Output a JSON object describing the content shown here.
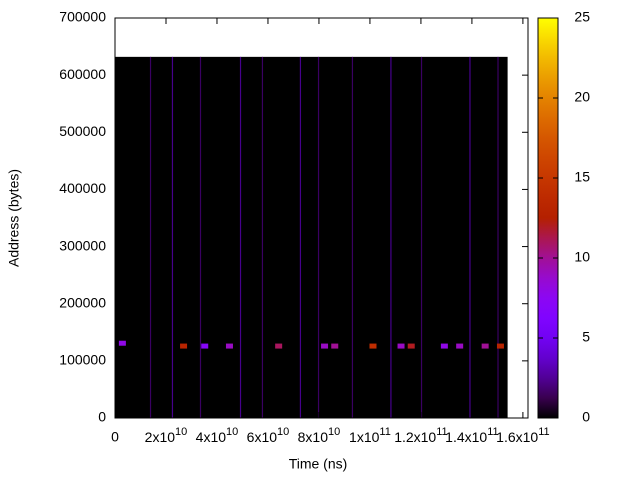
{
  "chart_data": {
    "type": "heatmap",
    "xlabel": "Time (ns)",
    "ylabel": "Address (bytes)",
    "xlim": [
      0,
      162000000000
    ],
    "ylim": [
      0,
      700000
    ],
    "zlim": [
      0,
      25
    ],
    "xticks": [
      0,
      {
        "value": 20000000000,
        "label": "2x10",
        "exponent": "10"
      },
      {
        "value": 40000000000,
        "label": "4x10",
        "exponent": "10"
      },
      {
        "value": 60000000000,
        "label": "6x10",
        "exponent": "10"
      },
      {
        "value": 80000000000,
        "label": "8x10",
        "exponent": "10"
      },
      {
        "value": 100000000000,
        "label": "1x10",
        "exponent": "11"
      },
      {
        "value": 120000000000,
        "label": "1.2x10",
        "exponent": "11"
      },
      {
        "value": 140000000000,
        "label": "1.4x10",
        "exponent": "11"
      },
      {
        "value": 160000000000,
        "label": "1.6x10",
        "exponent": "11"
      }
    ],
    "yticks": [
      0,
      100000,
      200000,
      300000,
      400000,
      500000,
      600000,
      700000
    ],
    "zticks": [
      0,
      5,
      10,
      15,
      20,
      25
    ],
    "background": {
      "x": [
        0,
        154000000000
      ],
      "y": [
        0,
        632000
      ],
      "value": 0
    },
    "streaks": {
      "x": [
        13700000000,
        22300000000,
        33300000000,
        49000000000,
        57600000000,
        72500000000,
        79600000000,
        92900000000,
        108000000000,
        120000000000,
        139000000000,
        150000000000
      ],
      "values": [
        2,
        3,
        2,
        3,
        2,
        3,
        2,
        2,
        3,
        2,
        3,
        2
      ]
    },
    "cells": {
      "x": [
        2700000000,
        26700000000,
        35000000000,
        44700000000,
        64000000000,
        82000000000,
        86000000000,
        101000000000,
        112000000000,
        116000000000,
        129000000000,
        135000000000,
        145000000000,
        151000000000
      ],
      "y": [
        130000,
        125000,
        125000,
        125000,
        125000,
        125000,
        125000,
        125000,
        125000,
        125000,
        125000,
        125000,
        125000,
        125000
      ],
      "values": [
        8,
        13,
        7,
        9,
        11,
        9,
        10,
        14,
        9,
        12,
        8,
        9,
        10,
        13
      ]
    }
  }
}
